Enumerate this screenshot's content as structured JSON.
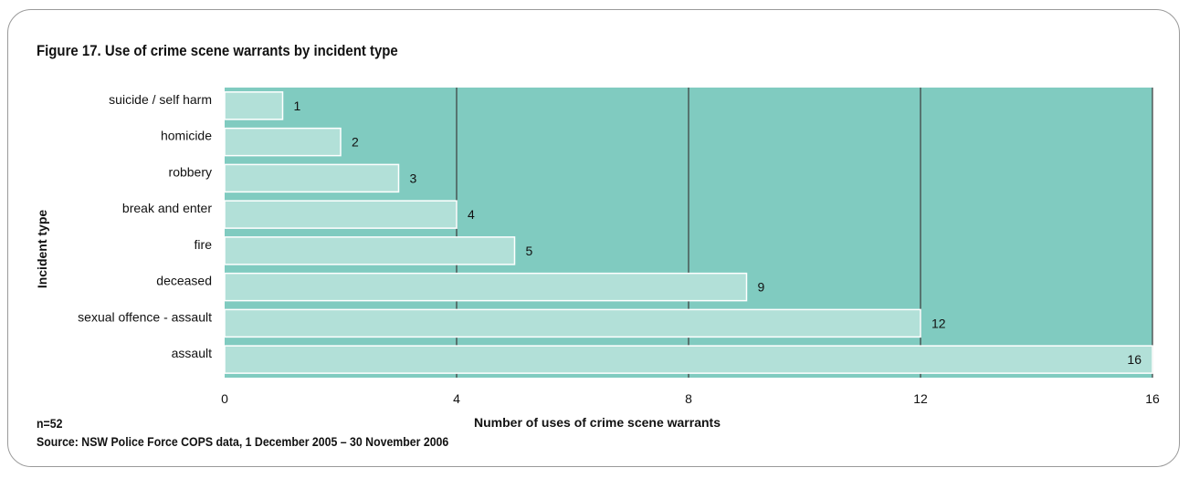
{
  "figure": {
    "title": "Figure 17. Use of crime scene warrants by incident type",
    "n_note": "n=52",
    "source": "Source: NSW Police Force COPS data, 1 December 2005 – 30 November 2006"
  },
  "colors": {
    "plot_bg": "#80cbc0",
    "bar_fill": "#b2e0d8",
    "bar_stroke": "#ffffff",
    "grid": "#3a3a3a",
    "frame": "#9a9a9a"
  },
  "chart_data": {
    "type": "bar",
    "orientation": "horizontal",
    "categories": [
      "suicide / self harm",
      "homicide",
      "robbery",
      "break and  enter",
      "fire",
      "deceased",
      "sexual offence - assault",
      "assault"
    ],
    "values": [
      1,
      2,
      3,
      4,
      5,
      9,
      12,
      16
    ],
    "data_labels": [
      "1",
      "2",
      "3",
      "4",
      "5",
      "9",
      "12",
      "16"
    ],
    "xlabel": "Number of uses of crime scene warrants",
    "ylabel": "Incident type",
    "xlim": [
      0,
      16
    ],
    "xticks": [
      0,
      4,
      8,
      12,
      16
    ],
    "xtick_labels": [
      "0",
      "4",
      "8",
      "12",
      "16"
    ],
    "grid": "vertical"
  }
}
